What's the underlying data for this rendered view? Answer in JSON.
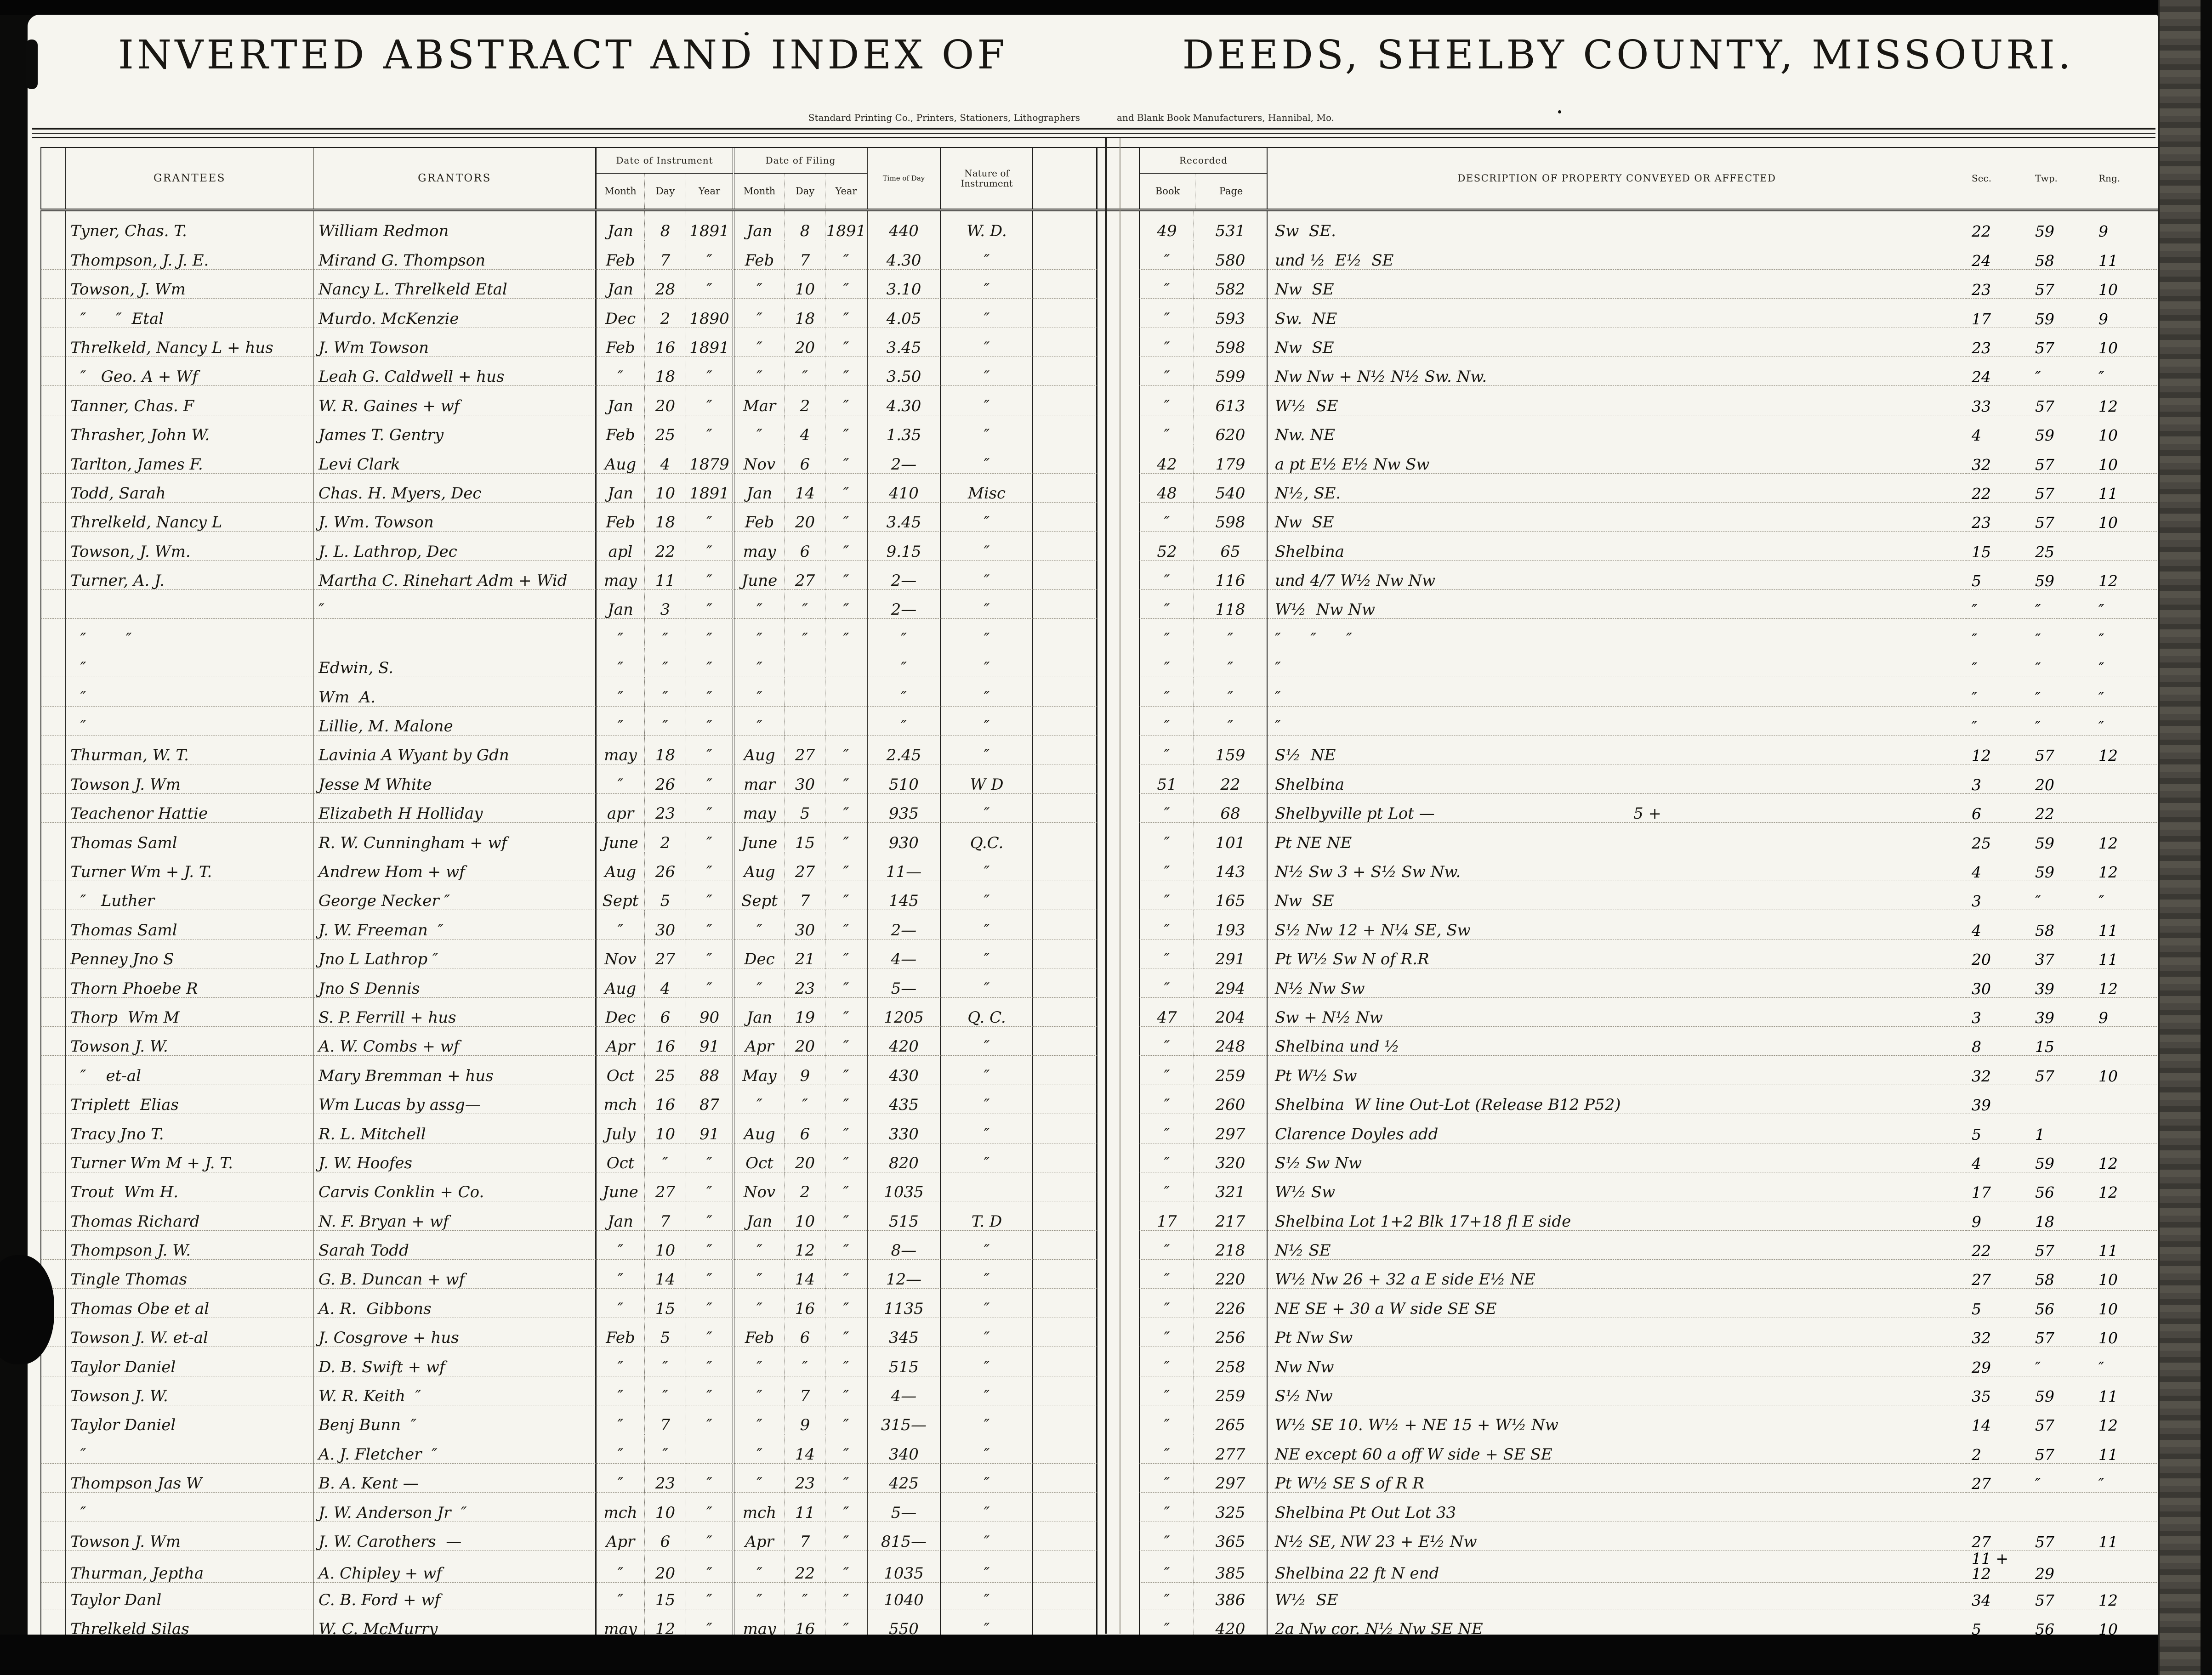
{
  "header": {
    "left_title": "INVERTED ABSTRACT AND INDEX OF",
    "right_title": "DEEDS, SHELBY COUNTY, MISSOURI.",
    "left_subtitle": "Standard Printing Co., Printers, Stationers, Lithographers",
    "right_subtitle": "and Blank Book Manufacturers, Hannibal, Mo.",
    "columns": {
      "grantees": "GRANTEES",
      "grantors": "GRANTORS",
      "date_of_instrument": "Date of Instrument",
      "date_of_filing": "Date of Filing",
      "month": "Month",
      "day": "Day",
      "year": "Year",
      "time_of_day": "Time of Day",
      "nature": "Nature of Instrument",
      "recorded": "Recorded",
      "book": "Book",
      "page": "Page",
      "description": "DESCRIPTION OF PROPERTY CONVEYED OR AFFECTED",
      "sec": "Sec.",
      "twp": "Twp.",
      "rng": "Rng."
    }
  },
  "rows": [
    {
      "grantee": "Tyner, Chas. T.",
      "grantor": "William Redmon",
      "im": "Jan",
      "id": "8",
      "iy": "1891",
      "fm": "Jan",
      "fd": "8",
      "fy": "1891",
      "time": "440",
      "nature": "W. D.",
      "book": "49",
      "page": "531",
      "desc": "Sw  SE.",
      "sec": "22",
      "twp": "59",
      "rng": "9"
    },
    {
      "grantee": "Thompson, J. J. E.",
      "grantor": "Mirand G. Thompson",
      "im": "Feb",
      "id": "7",
      "iy": "″",
      "fm": "Feb",
      "fd": "7",
      "fy": "″",
      "time": "4.30",
      "nature": "″",
      "book": "″",
      "page": "580",
      "desc": "und ½  E½  SE",
      "sec": "24",
      "twp": "58",
      "rng": "11"
    },
    {
      "grantee": "Towson, J. Wm",
      "grantor": "Nancy L. Threlkeld Etal",
      "im": "Jan",
      "id": "28",
      "iy": "″",
      "fm": "″",
      "fd": "10",
      "fy": "″",
      "time": "3.10",
      "nature": "″",
      "book": "″",
      "page": "582",
      "desc": "Nw  SE",
      "sec": "23",
      "twp": "57",
      "rng": "10"
    },
    {
      "grantee": "  ″      ″  Etal",
      "grantor": "Murdo. McKenzie",
      "im": "Dec",
      "id": "2",
      "iy": "1890",
      "fm": "″",
      "fd": "18",
      "fy": "″",
      "time": "4.05",
      "nature": "″",
      "book": "″",
      "page": "593",
      "desc": "Sw.  NE",
      "sec": "17",
      "twp": "59",
      "rng": "9"
    },
    {
      "grantee": "Threlkeld, Nancy L + hus",
      "grantor": "J. Wm Towson",
      "im": "Feb",
      "id": "16",
      "iy": "1891",
      "fm": "″",
      "fd": "20",
      "fy": "″",
      "time": "3.45",
      "nature": "″",
      "book": "″",
      "page": "598",
      "desc": "Nw  SE",
      "sec": "23",
      "twp": "57",
      "rng": "10"
    },
    {
      "grantee": "  ″   Geo. A + Wf",
      "grantor": "Leah G. Caldwell + hus",
      "im": "″",
      "id": "18",
      "iy": "″",
      "fm": "″",
      "fd": "″",
      "fy": "″",
      "time": "3.50",
      "nature": "″",
      "book": "″",
      "page": "599",
      "desc": "Nw Nw + N½ N½ Sw. Nw.",
      "sec": "24",
      "twp": "″",
      "rng": "″"
    },
    {
      "grantee": "Tanner, Chas. F",
      "grantor": "W. R. Gaines + wf",
      "im": "Jan",
      "id": "20",
      "iy": "″",
      "fm": "Mar",
      "fd": "2",
      "fy": "″",
      "time": "4.30",
      "nature": "″",
      "book": "″",
      "page": "613",
      "desc": "W½  SE",
      "sec": "33",
      "twp": "57",
      "rng": "12"
    },
    {
      "grantee": "Thrasher, John W.",
      "grantor": "James T. Gentry",
      "im": "Feb",
      "id": "25",
      "iy": "″",
      "fm": "″",
      "fd": "4",
      "fy": "″",
      "time": "1.35",
      "nature": "″",
      "book": "″",
      "page": "620",
      "desc": "Nw. NE",
      "sec": "4",
      "twp": "59",
      "rng": "10"
    },
    {
      "grantee": "Tarlton, James F.",
      "grantor": "Levi Clark",
      "im": "Aug",
      "id": "4",
      "iy": "1879",
      "fm": "Nov",
      "fd": "6",
      "fy": "″",
      "time": "2—",
      "nature": "″",
      "book": "42",
      "page": "179",
      "desc": "a pt E½ E½ Nw Sw",
      "sec": "32",
      "twp": "57",
      "rng": "10"
    },
    {
      "grantee": "Todd, Sarah",
      "grantor": "Chas. H. Myers, Dec",
      "im": "Jan",
      "id": "10",
      "iy": "1891",
      "fm": "Jan",
      "fd": "14",
      "fy": "″",
      "time": "410",
      "nature": "Misc",
      "book": "48",
      "page": "540",
      "desc": "N½, SE.",
      "sec": "22",
      "twp": "57",
      "rng": "11"
    },
    {
      "grantee": "Threlkeld, Nancy L",
      "grantor": "J. Wm. Towson",
      "im": "Feb",
      "id": "18",
      "iy": "″",
      "fm": "Feb",
      "fd": "20",
      "fy": "″",
      "time": "3.45",
      "nature": "″",
      "book": "″",
      "page": "598",
      "desc": "Nw  SE",
      "sec": "23",
      "twp": "57",
      "rng": "10"
    },
    {
      "grantee": "Towson, J. Wm.",
      "grantor": "J. L. Lathrop, Dec",
      "im": "apl",
      "id": "22",
      "iy": "″",
      "fm": "may",
      "fd": "6",
      "fy": "″",
      "time": "9.15",
      "nature": "″",
      "book": "52",
      "page": "65",
      "desc": "Shelbina",
      "sec": "15",
      "twp": "25",
      "rng": ""
    },
    {
      "grantee": "Turner, A. J.",
      "grantor": "Martha C. Rinehart Adm + Wid",
      "im": "may",
      "id": "11",
      "iy": "″",
      "fm": "June",
      "fd": "27",
      "fy": "″",
      "time": "2—",
      "nature": "″",
      "book": "″",
      "page": "116",
      "desc": "und 4/7 W½ Nw Nw",
      "sec": "5",
      "twp": "59",
      "rng": "12"
    },
    {
      "grantee": "",
      "grantor": "″",
      "im": "Jan",
      "id": "3",
      "iy": "″",
      "fm": "″",
      "fd": "″",
      "fy": "″",
      "time": "2—",
      "nature": "″",
      "book": "″",
      "page": "118",
      "desc": "W½  Nw Nw",
      "sec": "″",
      "twp": "″",
      "rng": "″"
    },
    {
      "grantee": "  ″        ″",
      "grantor": "",
      "im": "″",
      "id": "″",
      "iy": "″",
      "fm": "″",
      "fd": "″",
      "fy": "″",
      "time": "″",
      "nature": "″",
      "book": "″",
      "page": "″",
      "desc": "″      ″      ″",
      "sec": "″",
      "twp": "″",
      "rng": "″"
    },
    {
      "grantee": "  ″",
      "grantor": "Edwin, S.",
      "im": "″",
      "id": "″",
      "iy": "″",
      "fm": "″",
      "fd": "",
      "fy": "",
      "time": "″",
      "nature": "″",
      "book": "″",
      "page": "″",
      "desc": "″",
      "sec": "″",
      "twp": "″",
      "rng": "″"
    },
    {
      "grantee": "  ″",
      "grantor": "Wm  A.",
      "im": "″",
      "id": "″",
      "iy": "″",
      "fm": "″",
      "fd": "",
      "fy": "",
      "time": "″",
      "nature": "″",
      "book": "″",
      "page": "″",
      "desc": "″",
      "sec": "″",
      "twp": "″",
      "rng": "″"
    },
    {
      "grantee": "  ″",
      "grantor": "Lillie, M. Malone",
      "im": "″",
      "id": "″",
      "iy": "″",
      "fm": "″",
      "fd": "",
      "fy": "",
      "time": "″",
      "nature": "″",
      "book": "″",
      "page": "″",
      "desc": "″",
      "sec": "″",
      "twp": "″",
      "rng": "″"
    },
    {
      "grantee": "Thurman, W. T.",
      "grantor": "Lavinia A Wyant by Gdn",
      "im": "may",
      "id": "18",
      "iy": "″",
      "fm": "Aug",
      "fd": "27",
      "fy": "″",
      "time": "2.45",
      "nature": "″",
      "book": "″",
      "page": "159",
      "desc": "S½  NE",
      "sec": "12",
      "twp": "57",
      "rng": "12"
    },
    {
      "grantee": "Towson J. Wm",
      "grantor": "Jesse M White",
      "im": "″",
      "id": "26",
      "iy": "″",
      "fm": "mar",
      "fd": "30",
      "fy": "″",
      "time": "510",
      "nature": "W D",
      "book": "51",
      "page": "22",
      "desc": "Shelbina",
      "sec": "3",
      "twp": "20",
      "rng": ""
    },
    {
      "grantee": "Teachenor Hattie",
      "grantor": "Elizabeth H Holliday",
      "im": "apr",
      "id": "23",
      "iy": "″",
      "fm": "may",
      "fd": "5",
      "fy": "″",
      "time": "935",
      "nature": "″",
      "book": "″",
      "page": "68",
      "desc": "Shelbyville pt Lot —                                        5 +",
      "sec": "6",
      "twp": "22",
      "rng": ""
    },
    {
      "grantee": "Thomas Saml",
      "grantor": "R. W. Cunningham + wf",
      "im": "June",
      "id": "2",
      "iy": "″",
      "fm": "June",
      "fd": "15",
      "fy": "″",
      "time": "930",
      "nature": "Q.C.",
      "book": "″",
      "page": "101",
      "desc": "Pt NE NE",
      "sec": "25",
      "twp": "59",
      "rng": "12"
    },
    {
      "grantee": "Turner Wm + J. T.",
      "grantor": "Andrew Hom + wf",
      "im": "Aug",
      "id": "26",
      "iy": "″",
      "fm": "Aug",
      "fd": "27",
      "fy": "″",
      "time": "11—",
      "nature": "″",
      "book": "″",
      "page": "143",
      "desc": "N½ Sw 3 + S½ Sw Nw.",
      "sec": "4",
      "twp": "59",
      "rng": "12"
    },
    {
      "grantee": "  ″   Luther",
      "grantor": "George Necker ″",
      "im": "Sept",
      "id": "5",
      "iy": "″",
      "fm": "Sept",
      "fd": "7",
      "fy": "″",
      "time": "145",
      "nature": "″",
      "book": "″",
      "page": "165",
      "desc": "Nw  SE",
      "sec": "3",
      "twp": "″",
      "rng": "″"
    },
    {
      "grantee": "Thomas Saml",
      "grantor": "J. W. Freeman  ″",
      "im": "″",
      "id": "30",
      "iy": "″",
      "fm": "″",
      "fd": "30",
      "fy": "″",
      "time": "2—",
      "nature": "″",
      "book": "″",
      "page": "193",
      "desc": "S½ Nw 12 + N¼ SE, Sw",
      "sec": "4",
      "twp": "58",
      "rng": "11"
    },
    {
      "grantee": "Penney Jno S",
      "grantor": "Jno L Lathrop ″",
      "im": "Nov",
      "id": "27",
      "iy": "″",
      "fm": "Dec",
      "fd": "21",
      "fy": "″",
      "time": "4—",
      "nature": "″",
      "book": "″",
      "page": "291",
      "desc": "Pt W½ Sw N of R.R",
      "sec": "20",
      "twp": "37",
      "rng": "11"
    },
    {
      "grantee": "Thorn Phoebe R",
      "grantor": "Jno S Dennis",
      "im": "Aug",
      "id": "4",
      "iy": "″",
      "fm": "″",
      "fd": "23",
      "fy": "″",
      "time": "5—",
      "nature": "″",
      "book": "″",
      "page": "294",
      "desc": "N½ Nw Sw",
      "sec": "30",
      "twp": "39",
      "rng": "12"
    },
    {
      "grantee": "Thorp  Wm M",
      "grantor": "S. P. Ferrill + hus",
      "im": "Dec",
      "id": "6",
      "iy": "90",
      "fm": "Jan",
      "fd": "19",
      "fy": "″",
      "time": "1205",
      "nature": "Q. C.",
      "book": "47",
      "page": "204",
      "desc": "Sw + N½ Nw",
      "sec": "3",
      "twp": "39",
      "rng": "9"
    },
    {
      "grantee": "Towson J. W.",
      "grantor": "A. W. Combs + wf",
      "im": "Apr",
      "id": "16",
      "iy": "91",
      "fm": "Apr",
      "fd": "20",
      "fy": "″",
      "time": "420",
      "nature": "″",
      "book": "″",
      "page": "248",
      "desc": "Shelbina und ½",
      "sec": "8",
      "twp": "15",
      "rng": ""
    },
    {
      "grantee": "  ″    et-al",
      "grantor": "Mary Bremman + hus",
      "im": "Oct",
      "id": "25",
      "iy": "88",
      "fm": "May",
      "fd": "9",
      "fy": "″",
      "time": "430",
      "nature": "″",
      "book": "″",
      "page": "259",
      "desc": "Pt W½ Sw",
      "sec": "32",
      "twp": "57",
      "rng": "10"
    },
    {
      "grantee": "Triplett  Elias",
      "grantor": "Wm Lucas by assg—",
      "im": "mch",
      "id": "16",
      "iy": "87",
      "fm": "″",
      "fd": "″",
      "fy": "″",
      "time": "435",
      "nature": "″",
      "book": "″",
      "page": "260",
      "desc": "Shelbina  W line Out-Lot (Release B12 P52)",
      "sec": "39",
      "twp": "",
      "rng": ""
    },
    {
      "grantee": "Tracy Jno T.",
      "grantor": "R. L. Mitchell",
      "im": "July",
      "id": "10",
      "iy": "91",
      "fm": "Aug",
      "fd": "6",
      "fy": "″",
      "time": "330",
      "nature": "″",
      "book": "″",
      "page": "297",
      "desc": "Clarence Doyles add",
      "sec": "5",
      "twp": "1",
      "rng": ""
    },
    {
      "grantee": "Turner Wm M + J. T.",
      "grantor": "J. W. Hoofes",
      "im": "Oct",
      "id": "″",
      "iy": "″",
      "fm": "Oct",
      "fd": "20",
      "fy": "″",
      "time": "820",
      "nature": "″",
      "book": "″",
      "page": "320",
      "desc": "S½ Sw Nw",
      "sec": "4",
      "twp": "59",
      "rng": "12"
    },
    {
      "grantee": "Trout  Wm H.",
      "grantor": "Carvis Conklin + Co.",
      "im": "June",
      "id": "27",
      "iy": "″",
      "fm": "Nov",
      "fd": "2",
      "fy": "″",
      "time": "1035",
      "nature": "",
      "book": "″",
      "page": "321",
      "desc": "W½ Sw",
      "sec": "17",
      "twp": "56",
      "rng": "12"
    },
    {
      "grantee": "Thomas Richard",
      "grantor": "N. F. Bryan + wf",
      "im": "Jan",
      "id": "7",
      "iy": "″",
      "fm": "Jan",
      "fd": "10",
      "fy": "″",
      "time": "515",
      "nature": "T. D",
      "book": "17",
      "page": "217",
      "desc": "Shelbina Lot 1+2 Blk 17+18 fl E side",
      "sec": "9",
      "twp": "18",
      "rng": ""
    },
    {
      "grantee": "Thompson J. W.",
      "grantor": "Sarah Todd",
      "im": "″",
      "id": "10",
      "iy": "″",
      "fm": "″",
      "fd": "12",
      "fy": "″",
      "time": "8—",
      "nature": "″",
      "book": "″",
      "page": "218",
      "desc": "N½ SE",
      "sec": "22",
      "twp": "57",
      "rng": "11"
    },
    {
      "grantee": "Tingle Thomas",
      "grantor": "G. B. Duncan + wf",
      "im": "″",
      "id": "14",
      "iy": "″",
      "fm": "″",
      "fd": "14",
      "fy": "″",
      "time": "12—",
      "nature": "″",
      "book": "″",
      "page": "220",
      "desc": "W½ Nw 26 + 32 a E side E½ NE",
      "sec": "27",
      "twp": "58",
      "rng": "10"
    },
    {
      "grantee": "Thomas Obe et al",
      "grantor": "A. R.  Gibbons",
      "im": "″",
      "id": "15",
      "iy": "″",
      "fm": "″",
      "fd": "16",
      "fy": "″",
      "time": "1135",
      "nature": "″",
      "book": "″",
      "page": "226",
      "desc": "NE SE + 30 a W side SE SE",
      "sec": "5",
      "twp": "56",
      "rng": "10"
    },
    {
      "grantee": "Towson J. W. et-al",
      "grantor": "J. Cosgrove + hus",
      "im": "Feb",
      "id": "5",
      "iy": "″",
      "fm": "Feb",
      "fd": "6",
      "fy": "″",
      "time": "345",
      "nature": "″",
      "book": "″",
      "page": "256",
      "desc": "Pt Nw Sw",
      "sec": "32",
      "twp": "57",
      "rng": "10"
    },
    {
      "grantee": "Taylor Daniel",
      "grantor": "D. B. Swift + wf",
      "im": "″",
      "id": "″",
      "iy": "″",
      "fm": "″",
      "fd": "″",
      "fy": "″",
      "time": "515",
      "nature": "″",
      "book": "″",
      "page": "258",
      "desc": "Nw Nw",
      "sec": "29",
      "twp": "″",
      "rng": "″"
    },
    {
      "grantee": "Towson J. W.",
      "grantor": "W. R. Keith  ″",
      "im": "″",
      "id": "″",
      "iy": "″",
      "fm": "″",
      "fd": "7",
      "fy": "″",
      "time": "4—",
      "nature": "″",
      "book": "″",
      "page": "259",
      "desc": "S½ Nw",
      "sec": "35",
      "twp": "59",
      "rng": "11"
    },
    {
      "grantee": "Taylor Daniel",
      "grantor": "Benj Bunn  ″",
      "im": "″",
      "id": "7",
      "iy": "″",
      "fm": "″",
      "fd": "9",
      "fy": "″",
      "time": "315—",
      "nature": "″",
      "book": "″",
      "page": "265",
      "desc": "W½ SE 10. W½ + NE 15 + W½ Nw",
      "sec": "14",
      "twp": "57",
      "rng": "12"
    },
    {
      "grantee": "  ″",
      "grantor": "A. J. Fletcher  ″",
      "im": "″",
      "id": "″",
      "iy": "",
      "fm": "″",
      "fd": "14",
      "fy": "″",
      "time": "340",
      "nature": "″",
      "book": "″",
      "page": "277",
      "desc": "NE except 60 a off W side + SE SE",
      "sec": "2",
      "twp": "57",
      "rng": "11"
    },
    {
      "grantee": "Thompson Jas W",
      "grantor": "B. A. Kent —",
      "im": "″",
      "id": "23",
      "iy": "″",
      "fm": "″",
      "fd": "23",
      "fy": "″",
      "time": "425",
      "nature": "″",
      "book": "″",
      "page": "297",
      "desc": "Pt W½ SE S of R R",
      "sec": "27",
      "twp": "″",
      "rng": "″"
    },
    {
      "grantee": "  ″",
      "grantor": "J. W. Anderson Jr  ″",
      "im": "mch",
      "id": "10",
      "iy": "″",
      "fm": "mch",
      "fd": "11",
      "fy": "″",
      "time": "5—",
      "nature": "″",
      "book": "″",
      "page": "325",
      "desc": "Shelbina Pt Out Lot 33",
      "sec": "",
      "twp": "",
      "rng": ""
    },
    {
      "grantee": "Towson J. Wm",
      "grantor": "J. W. Carothers  —",
      "im": "Apr",
      "id": "6",
      "iy": "″",
      "fm": "Apr",
      "fd": "7",
      "fy": "″",
      "time": "815—",
      "nature": "″",
      "book": "″",
      "page": "365",
      "desc": "N½ SE, NW 23 + E½ Nw",
      "sec": "27",
      "twp": "57",
      "rng": "11"
    },
    {
      "grantee": "Thurman, Jeptha",
      "grantor": "A. Chipley + wf",
      "im": "″",
      "id": "20",
      "iy": "″",
      "fm": "″",
      "fd": "22",
      "fy": "″",
      "time": "1035",
      "nature": "″",
      "book": "″",
      "page": "385",
      "desc": "Shelbina 22 ft N end",
      "sec": "11 + 12",
      "twp": "29",
      "rng": ""
    },
    {
      "grantee": "Taylor Danl",
      "grantor": "C. B. Ford + wf",
      "im": "″",
      "id": "15",
      "iy": "″",
      "fm": "″",
      "fd": "″",
      "fy": "″",
      "time": "1040",
      "nature": "″",
      "book": "″",
      "page": "386",
      "desc": "W½  SE",
      "sec": "34",
      "twp": "57",
      "rng": "12"
    },
    {
      "grantee": "Threlkeld Silas",
      "grantor": "W. C. McMurry",
      "im": "may",
      "id": "12",
      "iy": "″",
      "fm": "may",
      "fd": "16",
      "fy": "″",
      "time": "550",
      "nature": "″",
      "book": "″",
      "page": "420",
      "desc": "2a Nw cor. N½ Nw SE NE",
      "sec": "5",
      "twp": "56",
      "rng": "10"
    }
  ]
}
